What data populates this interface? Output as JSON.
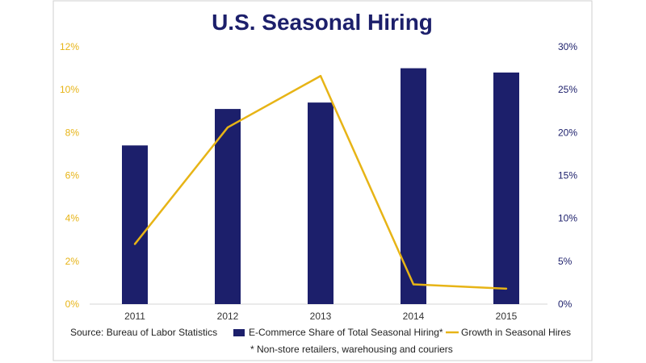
{
  "chart_data": {
    "type": "bar",
    "title": "U.S. Seasonal Hiring",
    "categories": [
      "2011",
      "2012",
      "2013",
      "2014",
      "2015"
    ],
    "series": [
      {
        "name": "E-Commerce Share of Total Seasonal Hiring*",
        "type": "bar",
        "axis": "left",
        "color": "#1c1f6b",
        "values": [
          7.4,
          9.1,
          9.4,
          11.0,
          10.8
        ]
      },
      {
        "name": "Growth in Seasonal Hires",
        "type": "line",
        "axis": "right",
        "color": "#e7b416",
        "values": [
          7.0,
          20.6,
          26.6,
          2.3,
          1.8
        ]
      }
    ],
    "y_left": {
      "min": 0,
      "max": 12,
      "ticks": [
        "0%",
        "2%",
        "4%",
        "6%",
        "8%",
        "10%",
        "12%"
      ]
    },
    "y_right": {
      "min": 0,
      "max": 30,
      "ticks": [
        "0%",
        "5%",
        "10%",
        "15%",
        "20%",
        "25%",
        "30%"
      ]
    },
    "grid": false,
    "legend_position": "bottom"
  },
  "source": "Source: Bureau of Labor Statistics",
  "footnote": "* Non-store retailers, warehousing and couriers",
  "colors": {
    "border": "#cfcfcf",
    "title": "#1c1f6b",
    "bar": "#1c1f6b",
    "line": "#e7b416"
  }
}
